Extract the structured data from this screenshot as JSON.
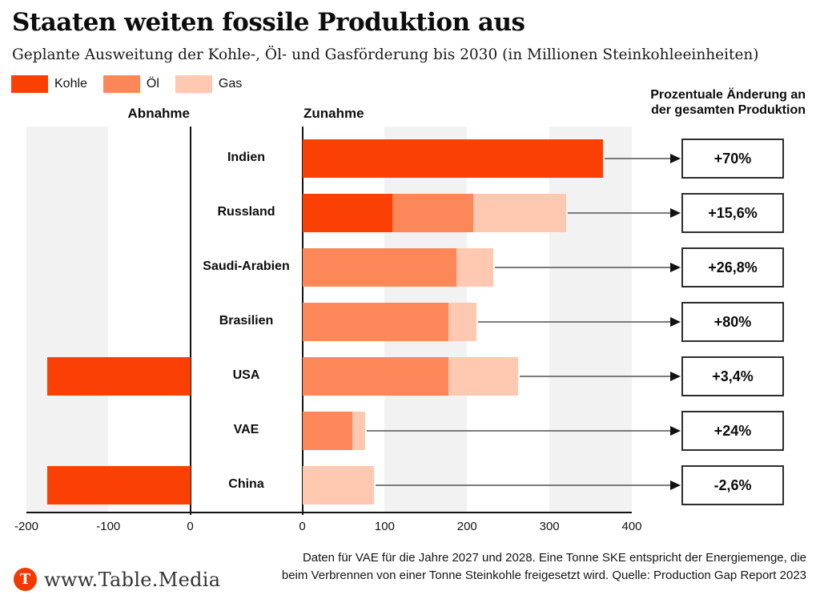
{
  "title": "Staaten weiten fossile Produktion aus",
  "subtitle": "Geplante Ausweitung der Kohle-, Öl- und Gasförderung bis 2030 (in Millionen Steinkohleeinheiten)",
  "legend": [
    {
      "label": "Kohle",
      "color": "#FB4005"
    },
    {
      "label": "Öl",
      "color": "#FC8759"
    },
    {
      "label": "Gas",
      "color": "#FEC9B0"
    }
  ],
  "panel_headers": {
    "left": "Abnahme",
    "right": "Zunahme"
  },
  "right_header": {
    "line1": "Prozentuale Änderung an",
    "line2": "der gesamten Produktion"
  },
  "chart_data": {
    "type": "bar",
    "orientation": "horizontal",
    "stacked": true,
    "diverging": true,
    "unit": "Millionen Steinkohleeinheiten",
    "series_order": [
      "Kohle",
      "Öl",
      "Gas"
    ],
    "series_colors": {
      "Kohle": "#FB4005",
      "Öl": "#FC8759",
      "Gas": "#FEC9B0"
    },
    "axis": {
      "left_panel_label": "Abnahme",
      "right_panel_label": "Zunahme",
      "left_ticks": [
        -200,
        -100,
        0
      ],
      "right_ticks": [
        0,
        100,
        200,
        300,
        400
      ],
      "left_range": [
        -200,
        0
      ],
      "right_range": [
        0,
        400
      ],
      "gridlines": false
    },
    "rows": [
      {
        "country": "Indien",
        "decrease": {},
        "increase": {
          "Kohle": 365
        },
        "percent_change": "+70%"
      },
      {
        "country": "Russland",
        "decrease": {},
        "increase": {
          "Kohle": 109,
          "Öl": 99,
          "Gas": 112
        },
        "percent_change": "+15,6%"
      },
      {
        "country": "Saudi-Arabien",
        "decrease": {},
        "increase": {
          "Öl": 187,
          "Gas": 45
        },
        "percent_change": "+26,8%"
      },
      {
        "country": "Brasilien",
        "decrease": {},
        "increase": {
          "Öl": 177,
          "Gas": 34
        },
        "percent_change": "+80%"
      },
      {
        "country": "USA",
        "decrease": {
          "Kohle": 175
        },
        "increase": {
          "Öl": 177,
          "Gas": 85
        },
        "percent_change": "+3,4%"
      },
      {
        "country": "VAE",
        "decrease": {},
        "increase": {
          "Öl": 61,
          "Gas": 15
        },
        "percent_change": "+24%"
      },
      {
        "country": "China",
        "decrease": {
          "Kohle": 175
        },
        "increase": {
          "Gas": 87
        },
        "percent_change": "-2,6%"
      }
    ]
  },
  "footnote": {
    "line1": "Daten für VAE für die Jahre 2027 und 2028. Eine Tonne SKE entspricht der Energiemenge, die",
    "line2": "beim Verbrennen von einer Tonne Steinkohle freigesetzt wird. Quelle: Production Gap Report 2023"
  },
  "footer": {
    "brand": "www.Table.Media",
    "logo_letter": "T",
    "logo_color": "#F23A00"
  },
  "colors": {
    "stripe": "#F2F2F2",
    "axis": "#141414",
    "arrow": "#7b7b7b"
  }
}
